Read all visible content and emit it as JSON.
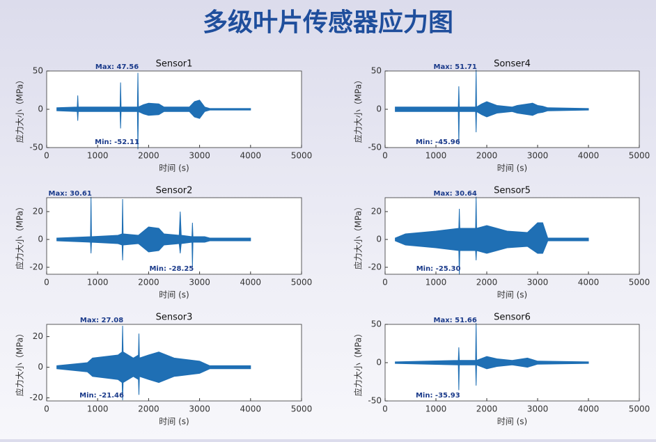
{
  "page_title": "多级叶片传感器应力图",
  "chart_data": [
    {
      "type": "area",
      "title": "Sensor1",
      "xlabel": "时间 (s)",
      "ylabel": "应力大小（MPa）",
      "color": "#1f6fb4",
      "annotations": [
        "Max: 47.56",
        "Min: -52.11"
      ],
      "xlim": [
        0,
        5000
      ],
      "xticks": [
        0,
        1000,
        2000,
        3000,
        4000,
        5000
      ],
      "ylim": [
        -50,
        50
      ],
      "yticks": [
        -50,
        0,
        50
      ],
      "x": [
        200,
        600,
        610,
        620,
        1000,
        1440,
        1450,
        1460,
        1780,
        1790,
        1800,
        1900,
        2000,
        2200,
        2300,
        2800,
        2900,
        3000,
        3100,
        3200,
        4000
      ],
      "series": [
        {
          "values": [
            2,
            3,
            18,
            3,
            3,
            3,
            35,
            3,
            3,
            47.56,
            3,
            6,
            8,
            7,
            3,
            3,
            10,
            12,
            3,
            1,
            1
          ]
        },
        {
          "values": [
            -2,
            -3,
            -15,
            -3,
            -3,
            -3,
            -25,
            -3,
            -3,
            -52.11,
            -3,
            -6,
            -8,
            -7,
            -3,
            -3,
            -10,
            -12,
            -3,
            -1,
            -1
          ]
        }
      ]
    },
    {
      "type": "area",
      "title": "Sonser4",
      "xlabel": "时间 (s)",
      "ylabel": "应力大小（MPa）",
      "color": "#1f6fb4",
      "annotations": [
        "Max: 51.71",
        "Min: -45.96"
      ],
      "xlim": [
        0,
        5000
      ],
      "xticks": [
        0,
        1000,
        2000,
        3000,
        4000,
        5000
      ],
      "ylim": [
        -50,
        50
      ],
      "yticks": [
        -50,
        0,
        50
      ],
      "x": [
        200,
        1440,
        1450,
        1460,
        1780,
        1790,
        1800,
        1900,
        2000,
        2200,
        2500,
        2600,
        2900,
        3000,
        3100,
        3200,
        4000
      ],
      "series": [
        {
          "values": [
            3,
            3,
            30,
            3,
            3,
            51.71,
            3,
            7,
            10,
            5,
            3,
            5,
            8,
            5,
            4,
            2,
            1
          ]
        },
        {
          "values": [
            -3,
            -3,
            -45.96,
            -3,
            -3,
            -30,
            -3,
            -7,
            -10,
            -5,
            -3,
            -5,
            -8,
            -5,
            -4,
            -2,
            -1
          ]
        }
      ]
    },
    {
      "type": "area",
      "title": "Sensor2",
      "xlabel": "时间 (s)",
      "ylabel": "应力大小（MPa）",
      "color": "#1f6fb4",
      "annotations": [
        "Max: 30.61",
        "Min: -28.25"
      ],
      "xlim": [
        0,
        5000
      ],
      "xticks": [
        0,
        1000,
        2000,
        3000,
        4000,
        5000
      ],
      "ylim": [
        -25,
        30
      ],
      "yticks": [
        -20,
        0,
        20
      ],
      "x": [
        200,
        860,
        870,
        880,
        1400,
        1480,
        1490,
        1500,
        1800,
        1900,
        2000,
        2200,
        2300,
        2600,
        2620,
        2640,
        2850,
        2860,
        2870,
        3100,
        3200,
        4000
      ],
      "series": [
        {
          "values": [
            1,
            2,
            30.61,
            2,
            3,
            4,
            29,
            4,
            3,
            6,
            9,
            8,
            4,
            3,
            20,
            3,
            2,
            12,
            2,
            2,
            1,
            1
          ]
        },
        {
          "values": [
            -1,
            -2,
            -10,
            -2,
            -3,
            -4,
            -15,
            -4,
            -3,
            -6,
            -9,
            -8,
            -4,
            -3,
            -10,
            -3,
            -2,
            -20,
            -2,
            -2,
            -1,
            -1
          ]
        }
      ]
    },
    {
      "type": "area",
      "title": "Sensor5",
      "xlabel": "时间 (s)",
      "ylabel": "应力大小（MPa）",
      "color": "#1f6fb4",
      "annotations": [
        "Max: 30.64",
        "Min: -25.30"
      ],
      "xlim": [
        0,
        5000
      ],
      "xticks": [
        0,
        1000,
        2000,
        3000,
        4000,
        5000
      ],
      "ylim": [
        -25,
        30
      ],
      "yticks": [
        -20,
        0,
        20
      ],
      "x": [
        200,
        400,
        1000,
        1450,
        1460,
        1470,
        1780,
        1790,
        1800,
        2000,
        2200,
        2400,
        2800,
        3000,
        3100,
        3200,
        4000
      ],
      "series": [
        {
          "values": [
            1,
            4,
            6,
            8,
            22,
            8,
            8,
            30.64,
            8,
            10,
            8,
            6,
            5,
            12,
            12,
            1,
            1
          ]
        },
        {
          "values": [
            -1,
            -4,
            -6,
            -8,
            -25.3,
            -8,
            -8,
            -15,
            -8,
            -10,
            -8,
            -6,
            -5,
            -10,
            -10,
            -1,
            -1
          ]
        }
      ]
    },
    {
      "type": "area",
      "title": "Sensor3",
      "xlabel": "时间 (s)",
      "ylabel": "应力大小（MPa）",
      "color": "#1f6fb4",
      "annotations": [
        "Max: 27.08",
        "Min: -21.46"
      ],
      "xlim": [
        0,
        5000
      ],
      "xticks": [
        0,
        1000,
        2000,
        3000,
        4000,
        5000
      ],
      "ylim": [
        -22,
        28
      ],
      "yticks": [
        -20,
        0,
        20
      ],
      "x": [
        200,
        800,
        900,
        1400,
        1480,
        1490,
        1500,
        1700,
        1800,
        1810,
        1820,
        2000,
        2200,
        2500,
        3000,
        3200,
        4000
      ],
      "series": [
        {
          "values": [
            1,
            3,
            6,
            8,
            10,
            27.08,
            10,
            6,
            8,
            22,
            6,
            8,
            10,
            6,
            4,
            1,
            1
          ]
        },
        {
          "values": [
            -1,
            -3,
            -6,
            -8,
            -10,
            -21.46,
            -10,
            -6,
            -8,
            -18,
            -6,
            -8,
            -10,
            -6,
            -4,
            -1,
            -1
          ]
        }
      ]
    },
    {
      "type": "area",
      "title": "Sensor6",
      "xlabel": "时间 (s)",
      "ylabel": "应力大小（MPa）",
      "color": "#1f6fb4",
      "annotations": [
        "Max: 51.66",
        "Min: -35.93"
      ],
      "xlim": [
        0,
        5000
      ],
      "xticks": [
        0,
        1000,
        2000,
        3000,
        4000,
        5000
      ],
      "ylim": [
        -50,
        50
      ],
      "yticks": [
        -50,
        0,
        50
      ],
      "x": [
        200,
        1440,
        1450,
        1460,
        1780,
        1790,
        1800,
        2000,
        2200,
        2500,
        2800,
        3000,
        4000
      ],
      "series": [
        {
          "values": [
            1,
            3,
            20,
            3,
            3,
            51.66,
            3,
            8,
            5,
            3,
            6,
            2,
            1
          ]
        },
        {
          "values": [
            -1,
            -3,
            -35.93,
            -3,
            -3,
            -30,
            -3,
            -8,
            -5,
            -3,
            -6,
            -2,
            -1
          ]
        }
      ]
    }
  ]
}
